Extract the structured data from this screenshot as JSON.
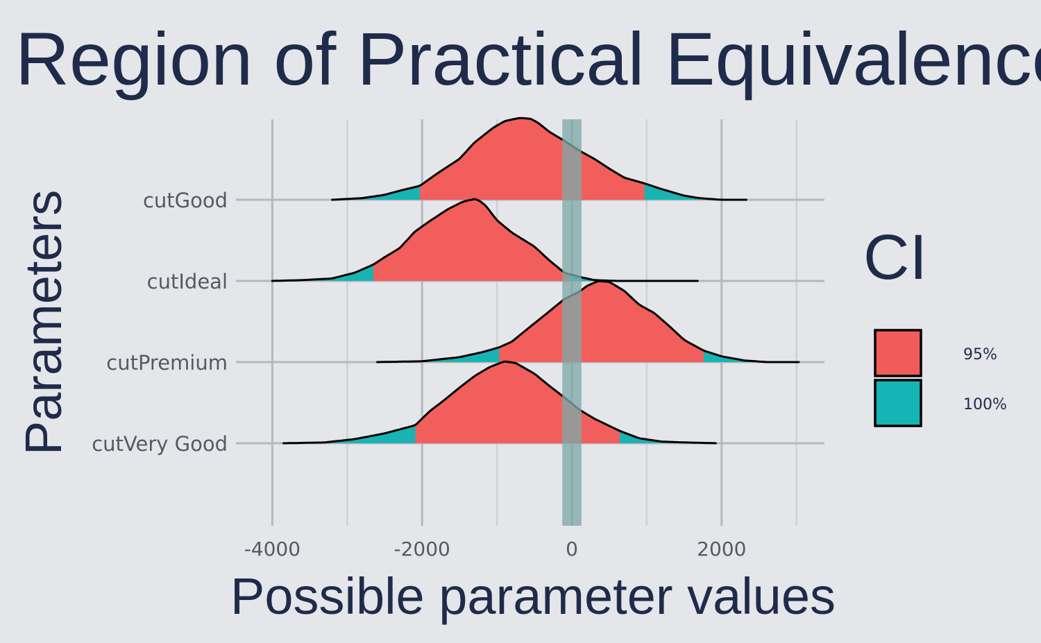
{
  "chart_data": {
    "type": "area",
    "subtype": "ridgeline-density",
    "title": "Region of Practical Equivalence (RO",
    "xlabel": "Possible parameter values",
    "ylabel": "Parameters",
    "xlim": [
      -4300,
      3400
    ],
    "x_ticks": [
      -4000,
      -2000,
      0,
      2000
    ],
    "x_tick_labels": [
      "-4000",
      "-2000",
      "0",
      "2000"
    ],
    "x_minor_ticks": [
      -3000,
      -1000,
      1000,
      3000
    ],
    "grid": true,
    "rope_range": [
      -100,
      100
    ],
    "categories": [
      "cutGood",
      "cutIdeal",
      "cutPremium",
      "cutVery Good"
    ],
    "series": [
      {
        "name": "cutGood",
        "ci_95": [
          -2030,
          970
        ],
        "ci_100": [
          -3200,
          2330
        ],
        "density_x": [
          -3200,
          -2800,
          -2500,
          -2300,
          -2030,
          -1800,
          -1500,
          -1300,
          -1050,
          -900,
          -700,
          -550,
          -450,
          -300,
          -100,
          100,
          300,
          500,
          700,
          970,
          1200,
          1500,
          1700,
          2000,
          2330
        ],
        "density_y": [
          0.0,
          0.02,
          0.06,
          0.11,
          0.17,
          0.32,
          0.5,
          0.7,
          0.88,
          0.96,
          1.0,
          0.99,
          0.94,
          0.83,
          0.72,
          0.6,
          0.5,
          0.38,
          0.27,
          0.2,
          0.13,
          0.05,
          0.02,
          0.0,
          0.0
        ]
      },
      {
        "name": "cutIdeal",
        "ci_95": [
          -2650,
          -30
        ],
        "ci_100": [
          -4000,
          1680
        ],
        "density_x": [
          -4000,
          -3600,
          -3200,
          -2900,
          -2650,
          -2500,
          -2300,
          -2100,
          -1900,
          -1650,
          -1450,
          -1300,
          -1250,
          -1150,
          -1000,
          -800,
          -500,
          -300,
          -100,
          100,
          300,
          600,
          1000,
          1400,
          1680
        ],
        "density_y": [
          0.0,
          0.01,
          0.03,
          0.1,
          0.2,
          0.29,
          0.4,
          0.6,
          0.73,
          0.88,
          0.97,
          1.0,
          0.99,
          0.92,
          0.74,
          0.59,
          0.42,
          0.25,
          0.1,
          0.05,
          0.01,
          0.0,
          0.0,
          0.0,
          0.0
        ]
      },
      {
        "name": "cutPremium",
        "ci_95": [
          -970,
          1760
        ],
        "ci_100": [
          -2600,
          3030
        ],
        "density_x": [
          -2600,
          -2000,
          -1500,
          -1200,
          -970,
          -800,
          -600,
          -300,
          -100,
          100,
          200,
          350,
          500,
          700,
          900,
          1100,
          1300,
          1500,
          1760,
          2000,
          2300,
          2600,
          3030
        ],
        "density_y": [
          0.0,
          0.01,
          0.06,
          0.12,
          0.18,
          0.25,
          0.4,
          0.62,
          0.77,
          0.86,
          0.93,
          0.99,
          0.98,
          0.87,
          0.7,
          0.6,
          0.44,
          0.27,
          0.14,
          0.07,
          0.02,
          0.0,
          0.0
        ]
      },
      {
        "name": "cutVery Good",
        "ci_95": [
          -2090,
          640
        ],
        "ci_100": [
          -3850,
          1920
        ],
        "density_x": [
          -3850,
          -3300,
          -2900,
          -2500,
          -2090,
          -1900,
          -1700,
          -1500,
          -1300,
          -1100,
          -900,
          -750,
          -500,
          -300,
          -100,
          100,
          300,
          640,
          900,
          1200,
          1500,
          1920
        ],
        "density_y": [
          0.0,
          0.01,
          0.05,
          0.12,
          0.22,
          0.39,
          0.53,
          0.68,
          0.82,
          0.93,
          1.0,
          0.98,
          0.85,
          0.7,
          0.56,
          0.41,
          0.3,
          0.15,
          0.06,
          0.02,
          0.01,
          0.0
        ]
      }
    ],
    "legend": {
      "title": "CI",
      "position": "right",
      "entries": [
        {
          "label": "95%",
          "color": "#f05c5a"
        },
        {
          "label": "100%",
          "color": "#16b5b5"
        }
      ]
    },
    "colors": {
      "ci95": "#f25e5b",
      "ci100": "#18b4b4",
      "rope": "#7fa9a8",
      "grid_major": "#b6b7bd",
      "grid_minor": "#cfd0d5",
      "background": "#e5e6ea",
      "title": "#1f2b4a",
      "tick_text": "#545a66"
    }
  }
}
